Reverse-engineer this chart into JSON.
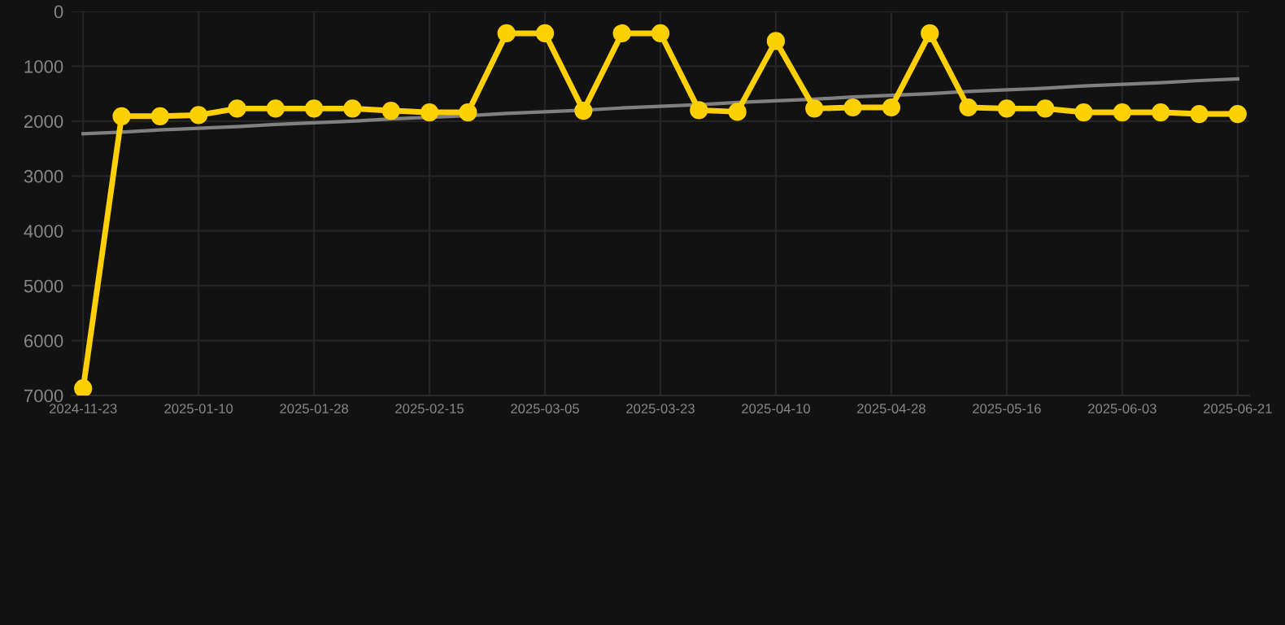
{
  "chart_data": {
    "type": "line",
    "categories": [
      "2024-11-23",
      null,
      null,
      "2025-01-10",
      null,
      null,
      "2025-01-28",
      null,
      null,
      "2025-02-15",
      null,
      null,
      "2025-03-05",
      null,
      null,
      "2025-03-23",
      null,
      null,
      "2025-04-10",
      null,
      null,
      "2025-04-28",
      null,
      null,
      "2025-05-16",
      null,
      null,
      "2025-06-03",
      null,
      null,
      "2025-06-21"
    ],
    "series": [
      {
        "color": "#ffd000",
        "marker": "circle",
        "values": [
          6870,
          1910,
          1910,
          1890,
          1770,
          1770,
          1770,
          1770,
          1810,
          1840,
          1840,
          400,
          400,
          1810,
          400,
          400,
          1800,
          1830,
          540,
          1770,
          1750,
          1750,
          400,
          1750,
          1770,
          1770,
          1840,
          1840,
          1840,
          1870,
          1870
        ]
      },
      {
        "color": "#808080",
        "marker": "none",
        "values": [
          2230,
          2200,
          2160,
          2130,
          2100,
          2060,
          2030,
          2000,
          1960,
          1930,
          1900,
          1860,
          1830,
          1800,
          1760,
          1730,
          1700,
          1660,
          1630,
          1600,
          1560,
          1530,
          1500,
          1460,
          1430,
          1400,
          1360,
          1330,
          1300,
          1260,
          1230
        ]
      }
    ],
    "ylim": [
      7000,
      0
    ],
    "yticks": [
      0,
      1000,
      2000,
      3000,
      4000,
      5000,
      6000,
      7000
    ],
    "grid": true
  }
}
